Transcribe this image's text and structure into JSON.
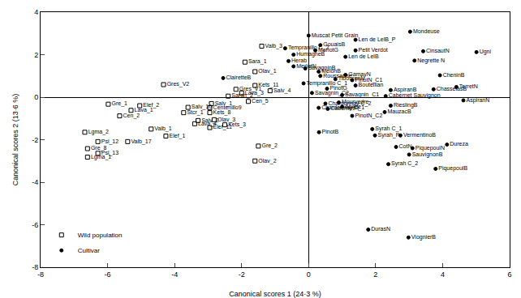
{
  "chart_data": {
    "type": "scatter",
    "xlabel": "Canonical scores 1 (24·3 %)",
    "ylabel": "Canonical scores 2 (13·6 %)",
    "xlim": [
      -8,
      6
    ],
    "ylim": [
      -8,
      4
    ],
    "xticks": [
      -8,
      -6,
      -4,
      -2,
      0,
      2,
      4,
      6
    ],
    "yticks": [
      -8,
      -6,
      -4,
      -2,
      0,
      2,
      4
    ],
    "grid": false,
    "legend": "lower left",
    "series": [
      {
        "name": "Wild population",
        "color": "#000000",
        "marker": "square-open",
        "labels": [
          "Valb_3",
          "Sara_1",
          "Olav_1",
          "Gres_V2",
          "Gres_V1",
          "Kets_11",
          "Salv_4",
          "Lava_3",
          "Saran_2",
          "Cen_5",
          "Salv_1",
          "Centenillo9",
          "Salv_10",
          "Stcr_1",
          "Kets_8",
          "Elef_2",
          "Gre_1",
          "Lava_1",
          "Cen_2",
          "Olav_3",
          "Kets_3",
          "Salv_2",
          "Lava_4",
          "Elef_11",
          "Valb_1",
          "Elef_1",
          "Lgma_2",
          "Psl_12",
          "Valb_17",
          "Gre_8",
          "Lgma_1",
          "Psl_13",
          "Gre_2",
          "Olav_2"
        ],
        "x": [
          -1.4,
          -1.9,
          -1.6,
          -4.33,
          -2.17,
          -1.6,
          -1.15,
          -2.0,
          -2.4,
          -1.8,
          -2.9,
          -2.95,
          -3.6,
          -3.73,
          -2.95,
          -5.04,
          -5.98,
          -5.3,
          -5.64,
          -2.82,
          -2.5,
          -3.3,
          -3.4,
          -2.95,
          -4.7,
          -4.26,
          -6.68,
          -6.29,
          -5.4,
          -6.6,
          -6.6,
          -6.29,
          -1.5,
          -1.6
        ],
        "values": [
          2.4,
          1.65,
          1.2,
          0.59,
          0.37,
          0.55,
          0.3,
          0.2,
          0.05,
          -0.2,
          -0.3,
          -0.5,
          -0.48,
          -0.73,
          -0.73,
          -0.4,
          -0.33,
          -0.62,
          -0.88,
          -1.06,
          -1.3,
          -1.1,
          -1.25,
          -1.43,
          -1.5,
          -1.83,
          -1.65,
          -2.09,
          -2.09,
          -2.42,
          -2.82,
          -2.64,
          -2.3,
          -3.0
        ]
      },
      {
        "name": "Cultivar",
        "color": "#000000",
        "marker": "circle",
        "labels": [
          "Mondeuse",
          "CinsautN",
          "Negrette N",
          "Ugni",
          "CheninB",
          "TerretN",
          "ChasselasB",
          "AspiranN",
          "Cabernet Sauvignon",
          "AspiranB",
          "RieslingB",
          "MauzacB",
          "PinotN_C2",
          "CabernetFr",
          "Syrah C_1",
          "Syrah_P",
          "VermentinoB",
          "CotN",
          "Dureza",
          "SauvignonB",
          "PiquepoulN",
          "Syrah C_2",
          "PiquepoulB",
          "DurasN",
          "ViognierB",
          "PinotB",
          "Chardonnay C_2",
          "Chardonnay C_1",
          "Mourvedre",
          "Arvine",
          "Savagnin_C1",
          "Savagnin_C2",
          "PinotG",
          "Bouteillan",
          "PinotN_C1",
          "GamayN",
          "TibourenN",
          "Roussanne",
          "MelonB",
          "Tempranillo C_1",
          "SavagninB",
          "Muscat Petit Grain",
          "GouaisB",
          "MerlotG",
          "Petit Verdot",
          "Len de LelB_P",
          "Len de LelB",
          "HumagneB",
          "Herab",
          "MerlotN",
          "Tempranillo C_2",
          "ClairetteB"
        ],
        "x": [
          3.03,
          3.42,
          3.16,
          5.01,
          3.92,
          4.41,
          3.73,
          4.62,
          2.3,
          2.45,
          2.45,
          2.27,
          1.3,
          0.57,
          1.9,
          1.98,
          2.74,
          2.61,
          4.13,
          3.0,
          3.1,
          2.38,
          3.79,
          1.78,
          2.98,
          0.31,
          0.5,
          0.3,
          0.9,
          1.0,
          1.0,
          0.1,
          0.55,
          1.4,
          1.3,
          1.1,
          0.8,
          0.35,
          0.3,
          -0.15,
          -0.1,
          0.0,
          0.35,
          0.2,
          1.4,
          1.4,
          1.1,
          -0.45,
          -0.6,
          -0.45,
          -0.7,
          -2.55
        ],
        "values": [
          3.08,
          2.16,
          1.72,
          2.12,
          1.03,
          0.48,
          0.37,
          -0.15,
          0.05,
          0.33,
          -0.4,
          -0.7,
          -0.88,
          -0.55,
          -1.5,
          -1.8,
          -1.8,
          -2.34,
          -2.23,
          -2.7,
          -2.4,
          -3.15,
          -3.37,
          -6.23,
          -6.6,
          -1.65,
          -0.3,
          -0.5,
          -0.25,
          -0.45,
          0.1,
          0.2,
          0.4,
          0.55,
          0.8,
          1.05,
          0.85,
          1.0,
          1.2,
          0.65,
          1.35,
          2.9,
          2.45,
          2.2,
          2.2,
          2.7,
          1.9,
          2.0,
          1.7,
          1.45,
          2.3,
          0.9
        ]
      }
    ]
  }
}
